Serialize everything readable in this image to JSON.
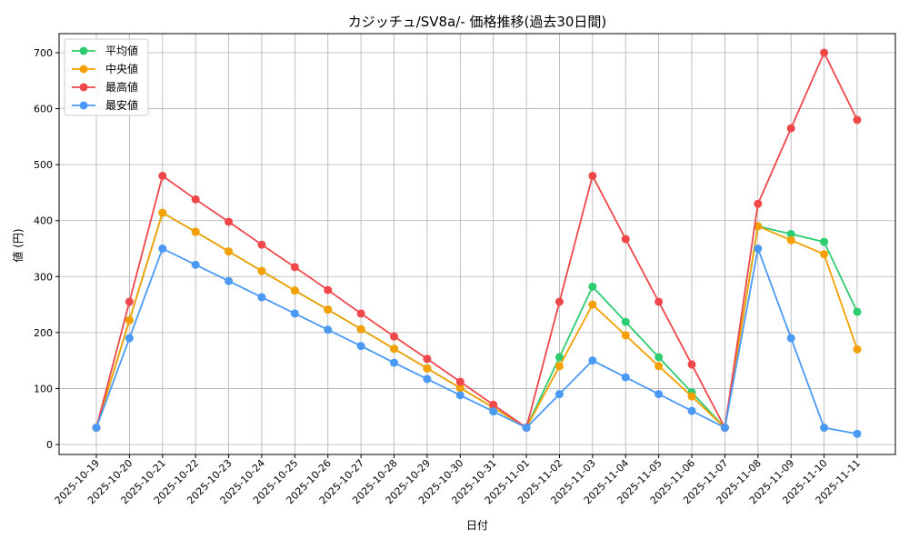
{
  "chart_data": {
    "type": "line",
    "title": "カジッチュ/SV8a/- 価格推移(過去30日間)",
    "xlabel": "日付",
    "ylabel": "値 (円)",
    "ylim": [
      -18,
      735
    ],
    "yticks": [
      0,
      100,
      200,
      300,
      400,
      500,
      600,
      700
    ],
    "grid": true,
    "legend_position": "top-left",
    "x": [
      "2025-10-19",
      "2025-10-20",
      "2025-10-21",
      "2025-10-22",
      "2025-10-23",
      "2025-10-24",
      "2025-10-25",
      "2025-10-26",
      "2025-10-27",
      "2025-10-28",
      "2025-10-29",
      "2025-10-30",
      "2025-10-31",
      "2025-11-01",
      "2025-11-02",
      "2025-11-03",
      "2025-11-04",
      "2025-11-05",
      "2025-11-06",
      "2025-11-07",
      "2025-11-08",
      "2025-11-09",
      "2025-11-10",
      "2025-11-11"
    ],
    "series": [
      {
        "name": "平均値",
        "color": "#2ecc71",
        "values": [
          30,
          222,
          414,
          380,
          345,
          310,
          275,
          241,
          206,
          171,
          136,
          101,
          66,
          30,
          156,
          282,
          219,
          156,
          93,
          30,
          390,
          376,
          362,
          237
        ]
      },
      {
        "name": "中央値",
        "color": "#f5a000",
        "values": [
          30,
          222,
          414,
          380,
          345,
          310,
          275,
          241,
          206,
          171,
          136,
          101,
          66,
          30,
          140,
          250,
          195,
          140,
          86,
          30,
          390,
          365,
          340,
          170
        ]
      },
      {
        "name": "最高値",
        "color": "#f0474a",
        "values": [
          30,
          255,
          480,
          438,
          398,
          357,
          317,
          276,
          234,
          193,
          153,
          112,
          71,
          30,
          255,
          480,
          367,
          255,
          143,
          30,
          430,
          565,
          700,
          580
        ]
      },
      {
        "name": "最安値",
        "color": "#4a9af5",
        "values": [
          30,
          190,
          350,
          321,
          292,
          263,
          234,
          205,
          176,
          146,
          117,
          88,
          59,
          30,
          90,
          150,
          120,
          90,
          60,
          30,
          350,
          190,
          30,
          19
        ]
      }
    ]
  }
}
